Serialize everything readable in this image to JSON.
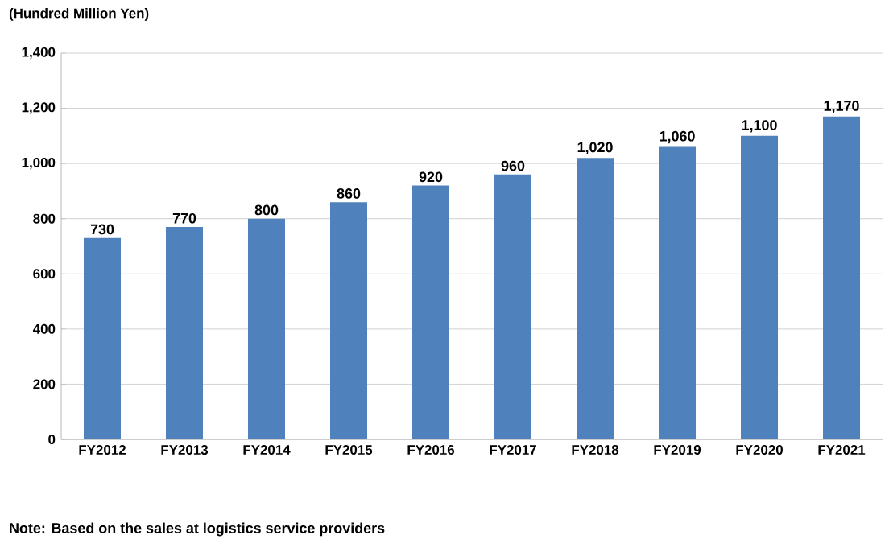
{
  "chart_data": {
    "type": "bar",
    "ylabel": "(Hundred  Million Yen)",
    "categories": [
      "FY2012",
      "FY2013",
      "FY2014",
      "FY2015",
      "FY2016",
      "FY2017",
      "FY2018",
      "FY2019",
      "FY2020",
      "FY2021"
    ],
    "values": [
      730,
      770,
      800,
      860,
      920,
      960,
      1020,
      1060,
      1100,
      1170
    ],
    "value_labels": [
      "730",
      "770",
      "800",
      "860",
      "920",
      "960",
      "1,020",
      "1,060",
      "1,100",
      "1,170"
    ],
    "color": "#4f81bd",
    "ylim": [
      0,
      1400
    ],
    "yticks": [
      0,
      200,
      400,
      600,
      800,
      {
        "value": 1000,
        "label": "1,000"
      },
      {
        "value": 1200,
        "label": "1,200"
      },
      {
        "value": 1400,
        "label": "1,400"
      }
    ],
    "grid": "y",
    "annotations": [
      "Note: Based on the sales at logistics service providers"
    ]
  }
}
